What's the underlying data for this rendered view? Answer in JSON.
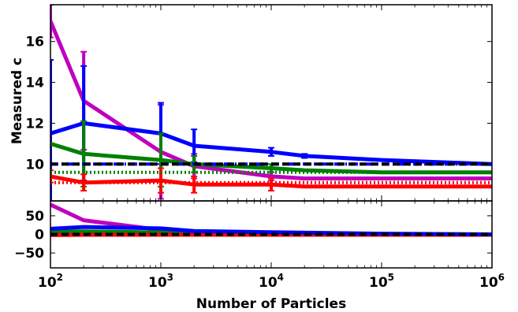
{
  "chart_data": [
    {
      "panel": "main",
      "type": "line",
      "xscale": "log",
      "xlim": [
        100,
        1000000
      ],
      "ylim": [
        8.2,
        17.8
      ],
      "ylabel": "Measured c",
      "yticks": [
        10,
        12,
        14,
        16
      ],
      "series": [
        {
          "color": "#bf00bf",
          "linestyle": "solid",
          "points": [
            [
              100,
              17.0
            ],
            [
              200,
              13.1
            ],
            [
              1000,
              10.6
            ],
            [
              2000,
              9.9
            ],
            [
              10000,
              9.4
            ],
            [
              20000,
              9.3
            ],
            [
              100000,
              9.3
            ],
            [
              1000000,
              9.3
            ]
          ],
          "errors": [
            [
              100,
              0.8
            ],
            [
              200,
              2.4
            ],
            [
              1000,
              2.3
            ],
            [
              2000,
              0.6
            ],
            [
              10000,
              0.2
            ]
          ]
        },
        {
          "color": "#0000ff",
          "linestyle": "solid",
          "points": [
            [
              100,
              11.5
            ],
            [
              200,
              12.0
            ],
            [
              1000,
              11.5
            ],
            [
              2000,
              10.9
            ],
            [
              10000,
              10.6
            ],
            [
              20000,
              10.4
            ],
            [
              100000,
              10.2
            ],
            [
              1000000,
              10.0
            ]
          ],
          "errors": [
            [
              100,
              3.6
            ],
            [
              200,
              2.8
            ],
            [
              1000,
              1.5
            ],
            [
              2000,
              0.8
            ],
            [
              10000,
              0.2
            ],
            [
              20000,
              0.1
            ]
          ]
        },
        {
          "color": "#008000",
          "linestyle": "solid",
          "points": [
            [
              100,
              11.0
            ],
            [
              200,
              10.5
            ],
            [
              1000,
              10.2
            ],
            [
              2000,
              10.0
            ],
            [
              10000,
              9.8
            ],
            [
              20000,
              9.7
            ],
            [
              100000,
              9.6
            ],
            [
              1000000,
              9.6
            ]
          ],
          "errors": [
            [
              200,
              1.6
            ],
            [
              1000,
              1.3
            ],
            [
              2000,
              0.4
            ],
            [
              10000,
              0.2
            ]
          ]
        },
        {
          "color": "#ff0000",
          "linestyle": "solid",
          "points": [
            [
              100,
              9.4
            ],
            [
              200,
              9.1
            ],
            [
              1000,
              9.2
            ],
            [
              2000,
              9.0
            ],
            [
              10000,
              9.0
            ],
            [
              20000,
              8.9
            ],
            [
              100000,
              8.9
            ],
            [
              1000000,
              8.9
            ]
          ],
          "errors": [
            [
              100,
              0.3
            ],
            [
              200,
              0.4
            ],
            [
              1000,
              0.6
            ],
            [
              2000,
              0.4
            ],
            [
              10000,
              0.3
            ]
          ]
        },
        {
          "color": "#ff0000",
          "linestyle": "dotted",
          "points": [
            [
              100,
              9.1
            ],
            [
              1000000,
              9.1
            ]
          ]
        },
        {
          "color": "#008000",
          "linestyle": "dotted",
          "points": [
            [
              100,
              9.6
            ],
            [
              1000000,
              9.6
            ]
          ]
        },
        {
          "color": "#0000ff",
          "linestyle": "dashdot",
          "points": [
            [
              100,
              10.0
            ],
            [
              1000000,
              10.0
            ]
          ]
        },
        {
          "color": "#000000",
          "linestyle": "dashed",
          "points": [
            [
              100,
              10.0
            ],
            [
              1000000,
              10.0
            ]
          ]
        }
      ]
    },
    {
      "panel": "residual",
      "type": "line",
      "xscale": "log",
      "xlim": [
        100,
        1000000
      ],
      "ylim": [
        -90,
        90
      ],
      "xlabel": "Number of Particles",
      "xticks": [
        100,
        1000,
        10000,
        100000,
        1000000
      ],
      "xtick_labels": [
        {
          "base": "10",
          "exp": "2"
        },
        {
          "base": "10",
          "exp": "3"
        },
        {
          "base": "10",
          "exp": "4"
        },
        {
          "base": "10",
          "exp": "5"
        },
        {
          "base": "10",
          "exp": "6"
        }
      ],
      "yticks": [
        50,
        0,
        -50
      ],
      "ytick_labels": [
        "50",
        "0",
        "−50"
      ],
      "series": [
        {
          "color": "#bf00bf",
          "linestyle": "solid",
          "points": [
            [
              100,
              80
            ],
            [
              200,
              38
            ],
            [
              1000,
              12
            ],
            [
              2000,
              5
            ],
            [
              10000,
              2
            ],
            [
              100000,
              0
            ],
            [
              1000000,
              0
            ]
          ]
        },
        {
          "color": "#008000",
          "linestyle": "solid",
          "points": [
            [
              100,
              8
            ],
            [
              200,
              8
            ],
            [
              1000,
              5
            ],
            [
              2000,
              3
            ],
            [
              10000,
              1
            ],
            [
              1000000,
              0
            ]
          ]
        },
        {
          "color": "#ff0000",
          "linestyle": "solid",
          "points": [
            [
              100,
              -2
            ],
            [
              200,
              -1
            ],
            [
              1000,
              -1
            ],
            [
              1000000,
              -1
            ]
          ]
        },
        {
          "color": "#0000ff",
          "linestyle": "solid",
          "points": [
            [
              100,
              15
            ],
            [
              200,
              20
            ],
            [
              1000,
              16
            ],
            [
              2000,
              9
            ],
            [
              10000,
              6
            ],
            [
              100000,
              2
            ],
            [
              1000000,
              0
            ]
          ]
        },
        {
          "color": "#000000",
          "linestyle": "dashed",
          "points": [
            [
              100,
              0
            ],
            [
              1000000,
              0
            ]
          ]
        }
      ]
    }
  ]
}
